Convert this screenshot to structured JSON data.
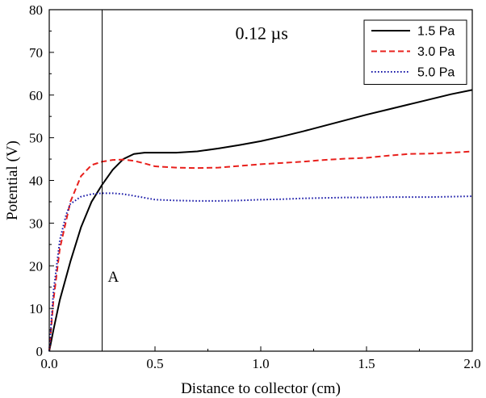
{
  "chart_data": {
    "type": "line",
    "xlabel": "Distance to collector (cm)",
    "ylabel": "Potential (V)",
    "xlim": [
      0.0,
      2.0
    ],
    "ylim": [
      0,
      80
    ],
    "xticks": [
      0.0,
      0.5,
      1.0,
      1.5,
      2.0
    ],
    "xtick_labels": [
      "0.0",
      "0.5",
      "1.0",
      "1.5",
      "2.0"
    ],
    "yticks": [
      0,
      10,
      20,
      30,
      40,
      50,
      60,
      70,
      80
    ],
    "ytick_labels": [
      "0",
      "10",
      "20",
      "30",
      "40",
      "50",
      "60",
      "70",
      "80"
    ],
    "grid": false,
    "legend_position": "top-right",
    "annotation": "0.12 µs",
    "vertical_marker": {
      "x": 0.25,
      "label": "A"
    },
    "series": [
      {
        "name": "1.5 Pa",
        "color": "#000000",
        "dash": "solid",
        "x": [
          0.0,
          0.02,
          0.05,
          0.1,
          0.15,
          0.2,
          0.25,
          0.3,
          0.35,
          0.4,
          0.45,
          0.5,
          0.6,
          0.7,
          0.8,
          0.9,
          1.0,
          1.1,
          1.2,
          1.3,
          1.4,
          1.5,
          1.6,
          1.7,
          1.8,
          1.9,
          2.0
        ],
        "y": [
          0,
          5,
          12,
          21,
          29,
          35,
          39,
          42.5,
          45,
          46.2,
          46.5,
          46.5,
          46.5,
          46.8,
          47.5,
          48.3,
          49.2,
          50.3,
          51.5,
          52.8,
          54.1,
          55.4,
          56.6,
          57.8,
          59.0,
          60.2,
          61.2
        ]
      },
      {
        "name": "3.0 Pa",
        "color": "#e8201c",
        "dash": "dashed",
        "x": [
          0.0,
          0.02,
          0.05,
          0.1,
          0.15,
          0.2,
          0.25,
          0.3,
          0.35,
          0.4,
          0.45,
          0.5,
          0.6,
          0.7,
          0.8,
          0.9,
          1.0,
          1.1,
          1.2,
          1.3,
          1.4,
          1.5,
          1.6,
          1.7,
          1.8,
          1.9,
          2.0
        ],
        "y": [
          0,
          12,
          24,
          35,
          41,
          43.6,
          44.4,
          44.8,
          44.9,
          44.6,
          44.0,
          43.3,
          43.0,
          42.9,
          43.0,
          43.4,
          43.8,
          44.1,
          44.4,
          44.8,
          45.1,
          45.3,
          45.8,
          46.2,
          46.3,
          46.5,
          46.8
        ]
      },
      {
        "name": "5.0 Pa",
        "color": "#1a1aa8",
        "dash": "dotted",
        "x": [
          0.0,
          0.02,
          0.05,
          0.08,
          0.1,
          0.15,
          0.2,
          0.25,
          0.3,
          0.35,
          0.4,
          0.5,
          0.6,
          0.7,
          0.8,
          0.9,
          1.0,
          1.1,
          1.2,
          1.3,
          1.4,
          1.5,
          1.6,
          1.7,
          1.8,
          1.9,
          2.0
        ],
        "y": [
          0,
          14,
          26,
          32,
          34.5,
          36.2,
          36.8,
          37.0,
          37.0,
          36.8,
          36.4,
          35.5,
          35.3,
          35.2,
          35.2,
          35.3,
          35.5,
          35.6,
          35.8,
          35.9,
          36.0,
          36.0,
          36.1,
          36.1,
          36.1,
          36.2,
          36.3
        ]
      }
    ]
  }
}
